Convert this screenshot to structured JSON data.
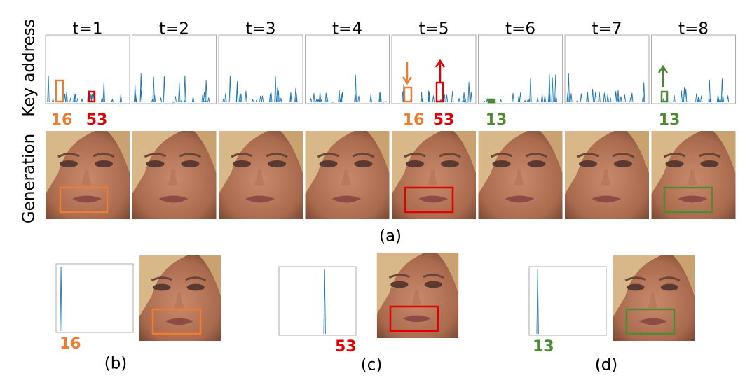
{
  "header": {
    "timesteps": [
      "t=1",
      "t=2",
      "t=3",
      "t=4",
      "t=5",
      "t=6",
      "t=7",
      "t=8"
    ]
  },
  "row_labels": {
    "key_address": "Key address",
    "generation": "Generation"
  },
  "panel_a": {
    "slot_labels": [
      "16",
      "53",
      "16",
      "53",
      "13",
      "13"
    ],
    "caption": "(a)"
  },
  "panels": [
    {
      "slot": "16",
      "caption": "(b)"
    },
    {
      "slot": "53",
      "caption": "(c)"
    },
    {
      "slot": "13",
      "caption": "(d)"
    }
  ]
}
